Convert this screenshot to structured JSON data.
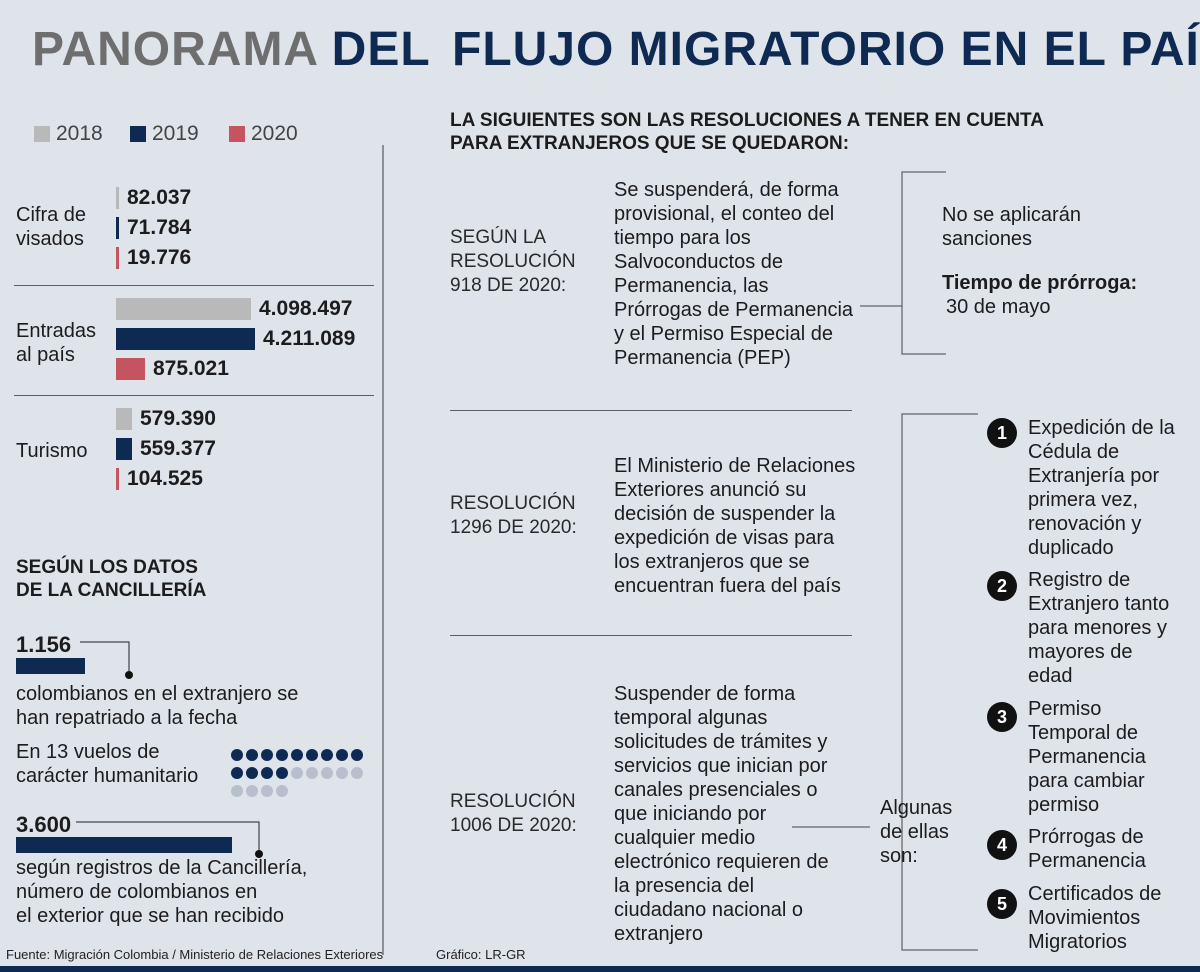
{
  "title": {
    "part1": "PANORAMA",
    "part2": "DEL",
    "part3": "FLUJO MIGRATORIO EN EL PAÍS"
  },
  "legend": [
    {
      "label": "2018",
      "color": "#b9b9b9"
    },
    {
      "label": "2019",
      "color": "#0e2a52"
    },
    {
      "label": "2020",
      "color": "#c4545f"
    }
  ],
  "chart_data": {
    "type": "bar",
    "orientation": "horizontal",
    "series_names": [
      "2018",
      "2019",
      "2020"
    ],
    "groups": [
      {
        "label": "Cifra de visados",
        "values": [
          82037,
          71784,
          19776
        ],
        "value_labels": [
          "82.037",
          "71.784",
          "19.776"
        ]
      },
      {
        "label": "Entradas al país",
        "values": [
          4098497,
          4211089,
          875021
        ],
        "value_labels": [
          "4.098.497",
          "4.211.089",
          "875.021"
        ]
      },
      {
        "label": "Turismo",
        "values": [
          579390,
          559377,
          104525
        ],
        "value_labels": [
          "579.390",
          "559.377",
          "104.525"
        ]
      }
    ]
  },
  "cancilleria": {
    "heading_line1": "SEGÚN LOS DATOS",
    "heading_line2": "DE LA CANCILLERÍA",
    "repatriated": {
      "value": 1156,
      "value_label": "1.156",
      "text_line1": "colombianos en el extranjero se",
      "text_line2": "han repatriado a la fecha"
    },
    "flights": {
      "text_line1": "En 13 vuelos de",
      "text_line2": "carácter humanitario",
      "count": 13,
      "total_dots": 22
    },
    "received": {
      "value": 3600,
      "value_label": "3.600",
      "text_line1": "según registros de la Cancillería,",
      "text_line2": "número de colombianos en",
      "text_line3": "el exterior que se han recibido"
    }
  },
  "resoluciones": {
    "heading_line1": "LA SIGUIENTES SON LAS RESOLUCIONES A TENER EN CUENTA",
    "heading_line2": "PARA EXTRANJEROS QUE SE QUEDARON:",
    "r918": {
      "label": [
        "SEGÚN LA",
        "RESOLUCIÓN",
        "918 DE 2020:"
      ],
      "text": [
        "Se suspenderá, de forma",
        "provisional, el conteo del",
        "tiempo para los",
        "Salvoconductos de",
        "Permanencia, las",
        "Prórrogas de Permanencia",
        "y el Permiso Especial de",
        "Permanencia (PEP)"
      ],
      "no_sanciones": [
        "No se aplicarán",
        "sanciones"
      ],
      "prorroga_title": "Tiempo de prórroga:",
      "prorroga_value": "30 de mayo"
    },
    "r1296": {
      "label": [
        "RESOLUCIÓN",
        "1296 DE 2020:"
      ],
      "text": [
        "El Ministerio de Relaciones",
        "Exteriores anunció su",
        "decisión de suspender la",
        "expedición de visas para",
        "los extranjeros que se",
        "encuentran fuera del país"
      ]
    },
    "r1006": {
      "label": [
        "RESOLUCIÓN",
        "1006 DE 2020:"
      ],
      "text": [
        "Suspender de forma",
        "temporal algunas",
        "solicitudes de trámites y",
        "servicios que inician por",
        "canales presenciales o",
        "que iniciando por",
        "cualquier medio",
        "electrónico requieren de",
        "la presencia del",
        "ciudadano nacional o",
        "extranjero"
      ],
      "algunas": [
        "Algunas",
        "de ellas",
        "son:"
      ]
    },
    "items": [
      {
        "num": "1",
        "lines": [
          "Expedición de la",
          "Cédula de",
          "Extranjería por",
          "primera vez,",
          "renovación y",
          "duplicado"
        ]
      },
      {
        "num": "2",
        "lines": [
          "Registro de",
          "Extranjero tanto",
          "para menores y",
          "mayores de",
          "edad"
        ]
      },
      {
        "num": "3",
        "lines": [
          "Permiso",
          "Temporal de",
          "Permanencia",
          "para cambiar",
          "permiso"
        ]
      },
      {
        "num": "4",
        "lines": [
          "Prórrogas de",
          "Permanencia"
        ]
      },
      {
        "num": "5",
        "lines": [
          "Certificados de",
          "Movimientos",
          "Migratorios"
        ]
      }
    ]
  },
  "footer": {
    "source": "Fuente: Migración Colombia / Ministerio de Relaciones Exteriores",
    "credit": "Gráfico: LR-GR"
  }
}
